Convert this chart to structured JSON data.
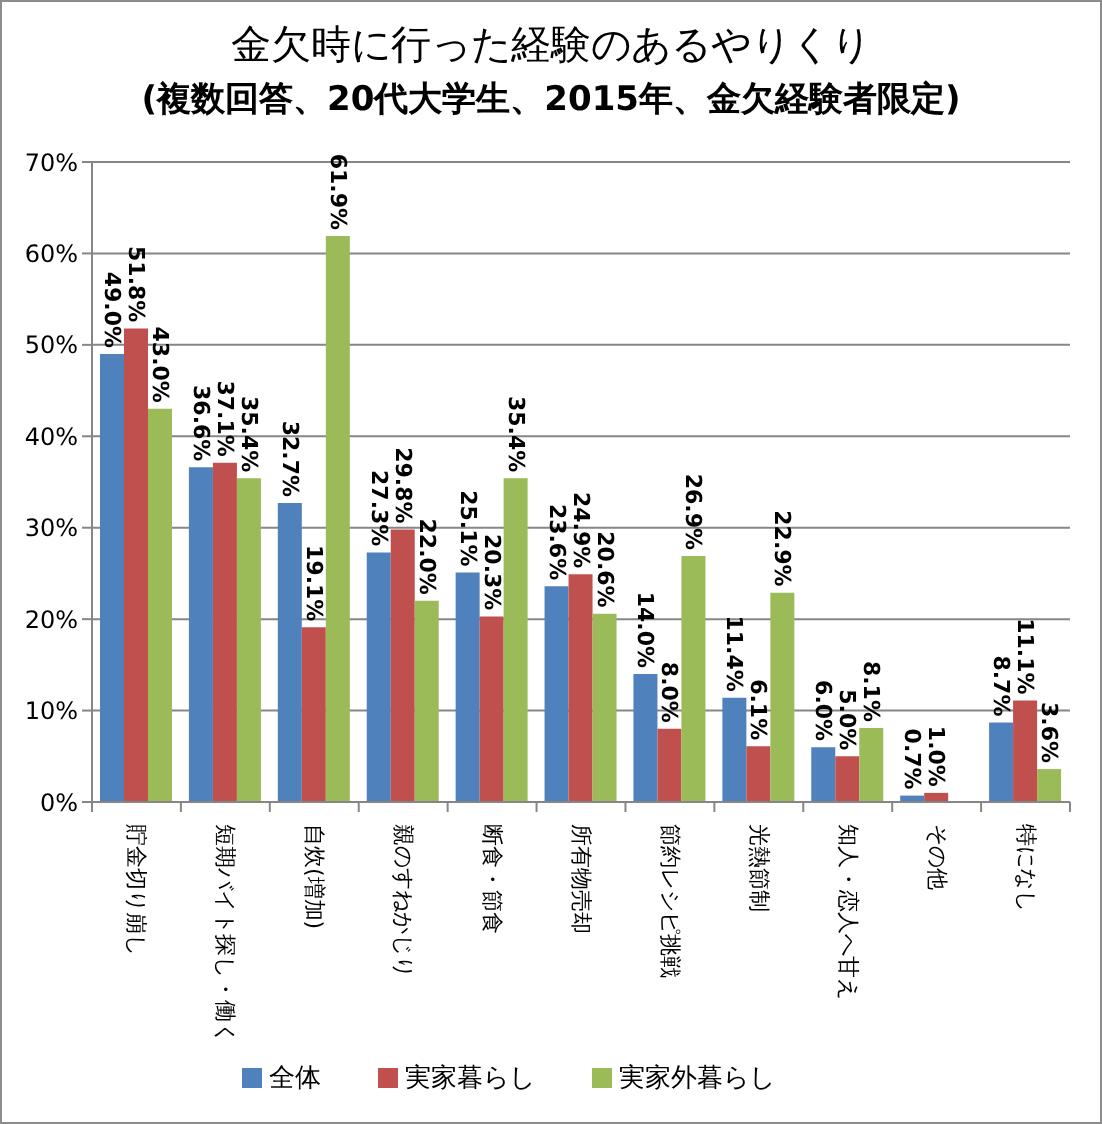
{
  "chart_data": {
    "type": "bar",
    "title": "金欠時に行った経験のあるやりくり",
    "subtitle": "(複数回答、20代大学生、2015年、金欠経験者限定)",
    "categories": [
      "貯金切り崩し",
      "短期バイト探し・働く",
      "自炊(増加)",
      "親のすねかじり",
      "断食・節食",
      "所有物売却",
      "節約レシピ挑戦",
      "光熱節制",
      "知人・恋人へ甘え",
      "その他",
      "特になし"
    ],
    "series": [
      {
        "name": "全体",
        "color": "#4f81bd",
        "values": [
          49.0,
          36.6,
          32.7,
          27.3,
          25.1,
          23.6,
          14.0,
          11.4,
          6.0,
          0.7,
          8.7
        ],
        "value_labels": [
          "49.0%",
          "36.6%",
          "32.7%",
          "27.3%",
          "25.1%",
          "23.6%",
          "14.0%",
          "11.4%",
          "6.0%",
          "0.7%",
          "8.7%"
        ]
      },
      {
        "name": "実家暮らし",
        "color": "#c0504d",
        "values": [
          51.8,
          37.1,
          19.1,
          29.8,
          20.3,
          24.9,
          8.0,
          6.1,
          5.0,
          1.0,
          11.1
        ],
        "value_labels": [
          "51.8%",
          "37.1%",
          "19.1%",
          "29.8%",
          "20.3%",
          "24.9%",
          "8.0%",
          "6.1%",
          "5.0%",
          "1.0%",
          "11.1%"
        ]
      },
      {
        "name": "実家外暮らし",
        "color": "#9bbb59",
        "values": [
          43.0,
          35.4,
          61.9,
          22.0,
          35.4,
          20.6,
          26.9,
          22.9,
          8.1,
          null,
          3.6
        ],
        "value_labels": [
          "43.0%",
          "35.4%",
          "61.9%",
          "22.0%",
          "35.4%",
          "20.6%",
          "26.9%",
          "22.9%",
          "8.1%",
          null,
          "3.6%"
        ]
      }
    ],
    "ylim": [
      0,
      70
    ],
    "yticks": [
      {
        "value": 0,
        "label": "0%"
      },
      {
        "value": 10,
        "label": "10%"
      },
      {
        "value": 20,
        "label": "20%"
      },
      {
        "value": 30,
        "label": "30%"
      },
      {
        "value": 40,
        "label": "40%"
      },
      {
        "value": 50,
        "label": "50%"
      },
      {
        "value": 60,
        "label": "60%"
      },
      {
        "value": 70,
        "label": "70%"
      }
    ],
    "grid": "y",
    "legend": "bottom"
  }
}
